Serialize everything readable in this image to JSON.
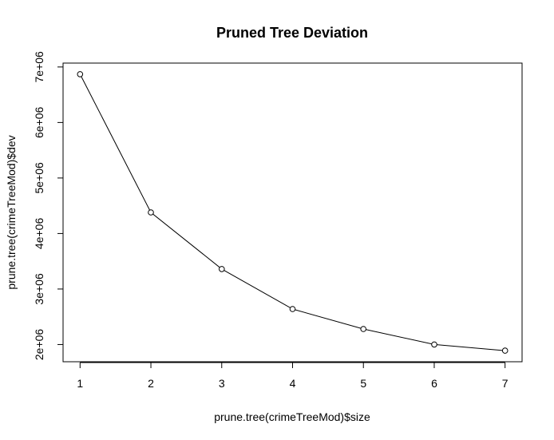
{
  "chart_data": {
    "type": "line",
    "title": "Pruned Tree Deviation",
    "xlabel": "prune.tree(crimeTreeMod)$size",
    "ylabel": "prune.tree(crimeTreeMod)$dev",
    "x": [
      1,
      2,
      3,
      4,
      5,
      6,
      7
    ],
    "y": [
      6870000,
      4380000,
      3360000,
      2640000,
      2280000,
      2000000,
      1890000
    ],
    "xlim": [
      0.76,
      7.24
    ],
    "ylim": [
      1690000,
      7070000
    ],
    "xticks": [
      1,
      2,
      3,
      4,
      5,
      6,
      7
    ],
    "xtick_labels": [
      "1",
      "2",
      "3",
      "4",
      "5",
      "6",
      "7"
    ],
    "yticks": [
      2000000,
      3000000,
      4000000,
      5000000,
      6000000,
      7000000
    ],
    "ytick_labels": [
      "2e+06",
      "3e+06",
      "4e+06",
      "5e+06",
      "6e+06",
      "7e+06"
    ],
    "marker": "open-circle",
    "grid": false,
    "legend": false,
    "colors": {
      "line": "#000000",
      "marker_stroke": "#000000",
      "marker_fill": "#ffffff"
    }
  }
}
